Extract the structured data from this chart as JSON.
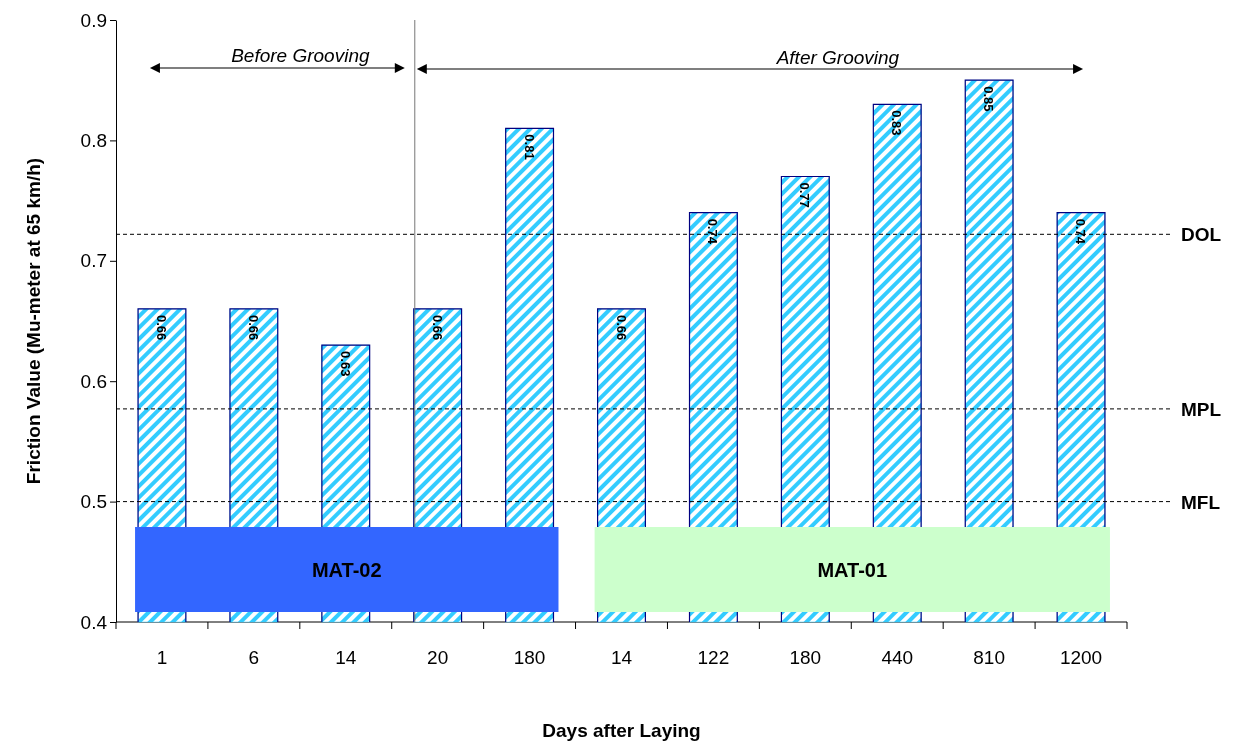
{
  "chart_data": {
    "type": "bar",
    "xlabel": "Days after Laying",
    "ylabel": "Friction Value (Mu-meter at 65 km/h)",
    "categories": [
      "1",
      "6",
      "14",
      "20",
      "180",
      "14",
      "122",
      "180",
      "440",
      "810",
      "1200"
    ],
    "values": [
      0.66,
      0.66,
      0.63,
      0.66,
      0.81,
      0.66,
      0.74,
      0.77,
      0.83,
      0.85,
      0.74
    ],
    "color": "#33ccff",
    "data_labels": true,
    "ylim": [
      0.4,
      0.9
    ],
    "yticks": [
      0.4,
      0.5,
      0.6,
      0.7,
      0.8,
      0.9
    ],
    "grid": false,
    "ref_lines": [
      {
        "axis": "y",
        "value": 0.722,
        "label": "DOL",
        "line_style": "dashed"
      },
      {
        "axis": "y",
        "value": 0.577,
        "label": "MPL",
        "line_style": "dashed"
      },
      {
        "axis": "y",
        "value": 0.5,
        "label": "MFL",
        "line_style": "dashed"
      },
      {
        "axis": "x",
        "value": "20",
        "line_style": "solid"
      }
    ],
    "annotations": [
      "Before Grooving",
      "After Grooving",
      "MAT-02",
      "MAT-01"
    ]
  }
}
